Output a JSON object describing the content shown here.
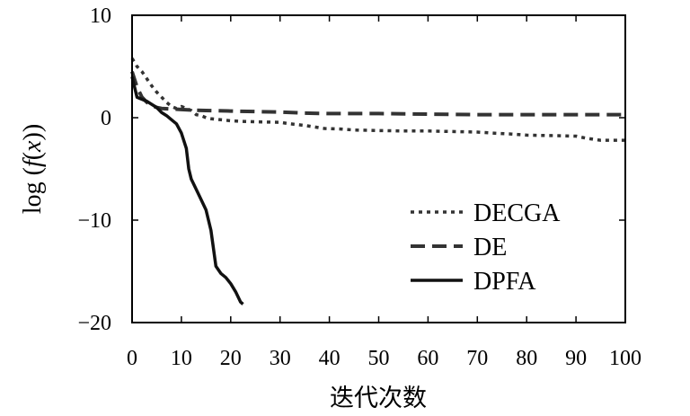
{
  "chart_data": {
    "type": "line",
    "xlabel": "迭代次数",
    "ylabel": "log (f(x))",
    "ylabel_parts": {
      "prefix": "log (",
      "f": "f",
      "open": "(",
      "x": "x",
      "close": "))"
    },
    "xlim": [
      0,
      100
    ],
    "ylim": [
      -20,
      10
    ],
    "xticks": [
      0,
      10,
      20,
      30,
      40,
      50,
      60,
      70,
      80,
      90,
      100
    ],
    "yticks": [
      {
        "value": 10,
        "label": "10"
      },
      {
        "value": 0,
        "label": "0"
      },
      {
        "value": -10,
        "label": "−10"
      },
      {
        "value": -20,
        "label": "−20"
      }
    ],
    "grid": false,
    "legend_position": "bottom-right",
    "series": [
      {
        "name": "DECGA",
        "style": "dotted",
        "color": "#333333",
        "points": [
          [
            0,
            5.8
          ],
          [
            1,
            5.0
          ],
          [
            2,
            4.5
          ],
          [
            3,
            3.8
          ],
          [
            4,
            3.1
          ],
          [
            5,
            2.5
          ],
          [
            6,
            2.0
          ],
          [
            7,
            1.5
          ],
          [
            8,
            1.1
          ],
          [
            9,
            0.9
          ],
          [
            10,
            1.1
          ],
          [
            11,
            0.9
          ],
          [
            12,
            0.7
          ],
          [
            13,
            0.3
          ],
          [
            14,
            0.2
          ],
          [
            15,
            0.0
          ],
          [
            16,
            -0.1
          ],
          [
            18,
            -0.2
          ],
          [
            20,
            -0.3
          ],
          [
            22,
            -0.35
          ],
          [
            25,
            -0.4
          ],
          [
            30,
            -0.45
          ],
          [
            32,
            -0.6
          ],
          [
            35,
            -0.75
          ],
          [
            37,
            -0.9
          ],
          [
            39,
            -1.05
          ],
          [
            42,
            -1.1
          ],
          [
            45,
            -1.2
          ],
          [
            50,
            -1.25
          ],
          [
            55,
            -1.3
          ],
          [
            60,
            -1.3
          ],
          [
            65,
            -1.35
          ],
          [
            70,
            -1.4
          ],
          [
            73,
            -1.5
          ],
          [
            77,
            -1.6
          ],
          [
            80,
            -1.7
          ],
          [
            85,
            -1.75
          ],
          [
            90,
            -1.8
          ],
          [
            92,
            -2.0
          ],
          [
            95,
            -2.2
          ],
          [
            100,
            -2.2
          ]
        ]
      },
      {
        "name": "DE",
        "style": "dashed",
        "color": "#333333",
        "points": [
          [
            0,
            4.5
          ],
          [
            1,
            3.0
          ],
          [
            2,
            2.0
          ],
          [
            3,
            1.5
          ],
          [
            4,
            1.2
          ],
          [
            5,
            1.0
          ],
          [
            6,
            0.9
          ],
          [
            8,
            0.85
          ],
          [
            10,
            0.8
          ],
          [
            12,
            0.75
          ],
          [
            15,
            0.7
          ],
          [
            20,
            0.65
          ],
          [
            25,
            0.6
          ],
          [
            30,
            0.55
          ],
          [
            35,
            0.45
          ],
          [
            40,
            0.4
          ],
          [
            50,
            0.4
          ],
          [
            60,
            0.35
          ],
          [
            70,
            0.3
          ],
          [
            80,
            0.3
          ],
          [
            90,
            0.3
          ],
          [
            100,
            0.3
          ]
        ]
      },
      {
        "name": "DPFA",
        "style": "solid",
        "color": "#111111",
        "points": [
          [
            0,
            4.0
          ],
          [
            1,
            2.0
          ],
          [
            2,
            1.8
          ],
          [
            3,
            1.6
          ],
          [
            4,
            1.3
          ],
          [
            5,
            1.0
          ],
          [
            6,
            0.5
          ],
          [
            7,
            0.2
          ],
          [
            8,
            -0.2
          ],
          [
            9,
            -0.6
          ],
          [
            10,
            -1.5
          ],
          [
            11,
            -3.0
          ],
          [
            11.5,
            -5.0
          ],
          [
            12,
            -6.0
          ],
          [
            13,
            -7.0
          ],
          [
            14,
            -8.0
          ],
          [
            15,
            -9.0
          ],
          [
            16,
            -11.0
          ],
          [
            17,
            -14.5
          ],
          [
            18,
            -15.2
          ],
          [
            19,
            -15.6
          ],
          [
            20,
            -16.2
          ],
          [
            21,
            -17.0
          ],
          [
            22,
            -18.0
          ],
          [
            22.5,
            -18.2
          ]
        ]
      }
    ]
  }
}
